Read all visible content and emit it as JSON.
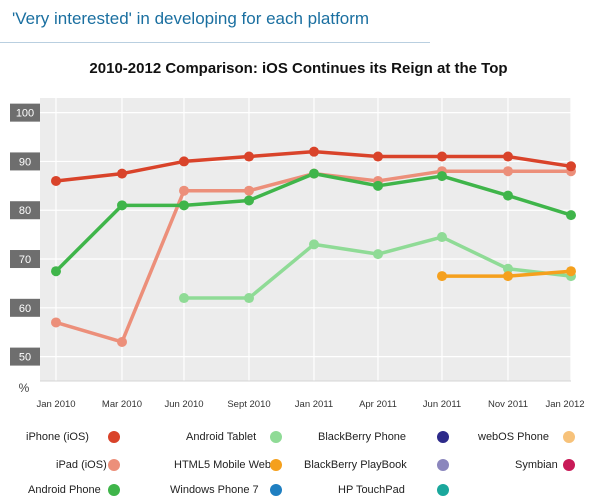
{
  "header": {
    "banner": "'Very interested' in developing for each platform"
  },
  "chart_data": {
    "type": "line",
    "title": "2010-2012 Comparison: iOS Continues its Reign at the Top",
    "ylabel": "%",
    "xlabel": "",
    "ylim": [
      45,
      103
    ],
    "yticks": [
      50,
      60,
      70,
      80,
      90,
      100
    ],
    "grid": true,
    "legend_position": "bottom",
    "categories": [
      "Jan 2010",
      "Mar 2010",
      "Jun 2010",
      "Sept 2010",
      "Jan 2011",
      "Apr 2011",
      "Jun 2011",
      "Nov 2011",
      "Jan 2012"
    ],
    "series": [
      {
        "name": "iPhone (iOS)",
        "color": "#d9432a",
        "values": [
          86,
          87.5,
          90,
          91,
          92,
          91,
          91,
          91,
          89
        ]
      },
      {
        "name": "iPad (iOS)",
        "color": "#ec8f7a",
        "values": [
          57,
          53,
          84,
          84,
          87.5,
          86,
          88,
          88,
          88
        ]
      },
      {
        "name": "Android Phone",
        "color": "#3fb54a",
        "values": [
          67.5,
          81,
          81,
          82,
          87.5,
          85,
          87,
          83,
          79
        ]
      },
      {
        "name": "Android Tablet",
        "color": "#8fdb96",
        "values": [
          null,
          null,
          62,
          62,
          73,
          71,
          74.5,
          68,
          66.5
        ]
      },
      {
        "name": "HTML5 Mobile Web",
        "color": "#f5a01d",
        "values": [
          null,
          null,
          null,
          null,
          null,
          null,
          66.5,
          66.5,
          67.5
        ]
      },
      {
        "name": "Windows Phone 7",
        "color": "#1f7fc1",
        "values": [
          null,
          null,
          null,
          null,
          null,
          null,
          null,
          null,
          null
        ]
      },
      {
        "name": "BlackBerry Phone",
        "color": "#2d2a8a",
        "values": [
          null,
          null,
          null,
          null,
          null,
          null,
          null,
          null,
          null
        ]
      },
      {
        "name": "BlackBerry PlayBook",
        "color": "#8b86bd",
        "values": [
          null,
          null,
          null,
          null,
          null,
          null,
          null,
          null,
          null
        ]
      },
      {
        "name": "HP TouchPad",
        "color": "#1aa79c",
        "values": [
          null,
          null,
          null,
          null,
          null,
          null,
          null,
          null,
          null
        ]
      },
      {
        "name": "webOS Phone",
        "color": "#f7c27a",
        "values": [
          null,
          null,
          null,
          null,
          null,
          null,
          null,
          null,
          null
        ]
      },
      {
        "name": "Symbian",
        "color": "#c81a57",
        "values": [
          null,
          null,
          null,
          null,
          null,
          null,
          null,
          null,
          null
        ]
      }
    ]
  }
}
